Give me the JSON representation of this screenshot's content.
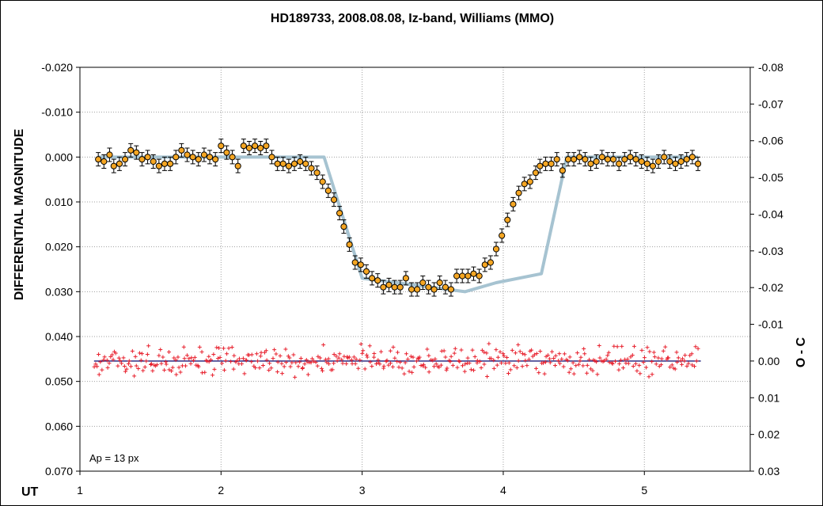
{
  "chart_data": {
    "type": "scatter",
    "title": "HD189733, 2008.08.08, Iz-band, Williams (MMO)",
    "xlabel": "UT",
    "ylabel": "DIFFERENTIAL MAGNITUDE",
    "y2label": "O - C",
    "annotation": "Ap = 13 px",
    "xlim": [
      1,
      5.75
    ],
    "ylim": [
      0.07,
      -0.02
    ],
    "y2lim": [
      0.03,
      -0.08
    ],
    "y_inverted": true,
    "y2_inverted": true,
    "grid": true,
    "x_ticks": [
      "1",
      "2",
      "3",
      "4",
      "5"
    ],
    "y_ticks": [
      "-0.020",
      "-0.010",
      "0.000",
      "0.010",
      "0.020",
      "0.030",
      "0.040",
      "0.050",
      "0.060",
      "0.070"
    ],
    "y2_ticks": [
      "-0.08",
      "-0.07",
      "-0.06",
      "-0.05",
      "-0.04",
      "-0.03",
      "-0.02",
      "-0.01",
      "0.00",
      "0.01",
      "0.02",
      "0.03"
    ],
    "colors": {
      "data": "#f5a623",
      "model": "#a6c3d1",
      "residuals": "#e8212e",
      "zero_line": "#1c1c7a",
      "grid": "#a0a0a0"
    },
    "series": [
      {
        "type": "scatter-errorbar",
        "x": [
          1.13,
          1.17,
          1.21,
          1.24,
          1.28,
          1.32,
          1.36,
          1.4,
          1.44,
          1.48,
          1.52,
          1.56,
          1.6,
          1.64,
          1.68,
          1.72,
          1.76,
          1.8,
          1.84,
          1.88,
          1.92,
          1.96,
          2.0,
          2.04,
          2.08,
          2.12,
          2.16,
          2.2,
          2.24,
          2.28,
          2.32,
          2.36,
          2.4,
          2.44,
          2.48,
          2.52,
          2.56,
          2.6,
          2.64,
          2.68,
          2.72,
          2.76,
          2.8,
          2.84,
          2.87,
          2.91,
          2.95,
          2.99,
          3.03,
          3.07,
          3.11,
          3.15,
          3.19,
          3.23,
          3.27,
          3.31,
          3.35,
          3.39,
          3.43,
          3.47,
          3.51,
          3.55,
          3.59,
          3.63,
          3.67,
          3.71,
          3.75,
          3.79,
          3.83,
          3.87,
          3.91,
          3.95,
          3.99,
          4.03,
          4.07,
          4.11,
          4.15,
          4.19,
          4.23,
          4.26,
          4.3,
          4.34,
          4.38,
          4.42,
          4.46,
          4.5,
          4.54,
          4.58,
          4.62,
          4.66,
          4.7,
          4.74,
          4.78,
          4.82,
          4.86,
          4.9,
          4.94,
          4.98,
          5.02,
          5.06,
          5.1,
          5.14,
          5.18,
          5.22,
          5.26,
          5.3,
          5.34,
          5.38
        ],
        "y": [
          0.0005,
          0.001,
          -0.0005,
          0.002,
          0.0015,
          0.0005,
          -0.0015,
          -0.001,
          0.0005,
          0.0,
          0.001,
          0.002,
          0.0015,
          0.0015,
          0.0,
          -0.0015,
          -0.0005,
          0.0,
          0.0005,
          -0.0005,
          0.0,
          0.0005,
          -0.0025,
          -0.001,
          0.0,
          0.002,
          -0.0025,
          -0.002,
          -0.0025,
          -0.002,
          -0.0025,
          0.0,
          0.0015,
          0.0015,
          0.002,
          0.0015,
          0.001,
          0.0015,
          0.0025,
          0.0035,
          0.0055,
          0.0075,
          0.0095,
          0.0125,
          0.0155,
          0.0195,
          0.0235,
          0.024,
          0.0255,
          0.027,
          0.0275,
          0.029,
          0.0285,
          0.029,
          0.029,
          0.027,
          0.0295,
          0.0295,
          0.028,
          0.029,
          0.0295,
          0.028,
          0.029,
          0.0295,
          0.0265,
          0.0265,
          0.0265,
          0.026,
          0.0265,
          0.024,
          0.0235,
          0.0205,
          0.0175,
          0.014,
          0.0105,
          0.008,
          0.006,
          0.0055,
          0.0035,
          0.002,
          0.0015,
          0.0015,
          0.0005,
          0.003,
          0.0005,
          0.0005,
          0.0,
          0.0005,
          0.0015,
          0.001,
          0.0,
          0.0005,
          0.0005,
          0.0015,
          0.0005,
          0.0,
          0.0005,
          0.001,
          0.0015,
          0.002,
          0.001,
          0.0,
          0.001,
          0.0015,
          0.001,
          0.0005,
          0.0,
          0.0015
        ],
        "y_error": 0.0015
      },
      {
        "type": "line",
        "name_hidden": "model",
        "x": [
          1.13,
          2.73,
          3.0,
          3.73,
          3.95,
          4.27,
          4.45,
          5.38
        ],
        "y": [
          0.0,
          0.0,
          0.027,
          0.03,
          0.028,
          0.026,
          0.0,
          0.0
        ]
      },
      {
        "type": "residuals",
        "axis": "y2",
        "x_start": 1.1,
        "x_end": 5.38,
        "count": 440,
        "spread": 0.0055
      }
    ]
  }
}
